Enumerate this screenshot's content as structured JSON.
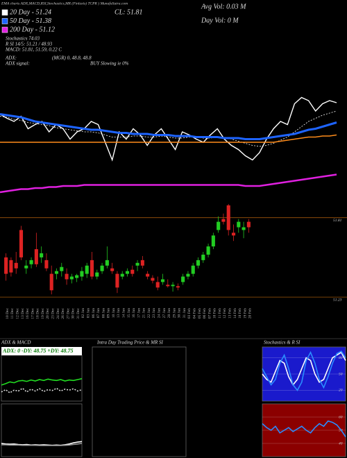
{
  "header": {
    "title": "EMA charts ADX,MACD,RSI,Stochastics,MR (Finlaxis) TCPR ) MunafaSutra.com",
    "cl": "CL: 51.81",
    "avg_vol": "Avg Vol: 0.03 M",
    "day_vol": "Day Vol: 0  M"
  },
  "indicators": {
    "stochastics": "Stochastics 74.03",
    "rsi": "R SI 14/5: 51.21 / 48.93",
    "macd": "MACD: 51.81, 51.59, 0.22 C",
    "adx_label": "ADX:",
    "adx_value": "(MGR) 0, 48.8, 48.8",
    "signal_label": "ADX  signal:",
    "signal_value": "BUY Slowing ie 0%"
  },
  "chart_data": [
    {
      "type": "line",
      "ylim": [
        0,
        100
      ],
      "series": [
        {
          "color": "#ffffff",
          "values": [
            77,
            73,
            70,
            75,
            63,
            67,
            70,
            60,
            67,
            63,
            53,
            60,
            63,
            70,
            67,
            50,
            33,
            60,
            53,
            63,
            57,
            47,
            57,
            63,
            53,
            43,
            60,
            57,
            53,
            50,
            57,
            63,
            53,
            47,
            43,
            37,
            33,
            40,
            53,
            63,
            70,
            67,
            87,
            93,
            90,
            80,
            87,
            90,
            88
          ]
        },
        {
          "name": "20 Day - 51.24",
          "color": "#ffffff",
          "dash": true,
          "values": [
            75,
            74,
            72,
            71,
            69,
            68,
            67,
            66,
            64,
            63,
            62,
            61,
            60,
            60,
            59,
            57,
            55,
            55,
            55,
            56,
            56,
            55,
            55,
            56,
            55,
            54,
            54,
            55,
            55,
            54,
            54,
            55,
            55,
            53,
            51,
            49,
            47,
            46,
            47,
            49,
            52,
            55,
            60,
            65,
            70,
            73,
            76,
            78,
            80
          ]
        },
        {
          "name": "50 Day - 51.38",
          "color": "#1e64ff",
          "values": [
            77,
            76,
            75,
            74,
            72,
            70,
            69,
            68,
            67,
            66,
            65,
            64,
            63,
            62,
            62,
            61,
            60,
            59,
            59,
            58,
            58,
            58,
            57,
            57,
            57,
            56,
            56,
            56,
            55,
            55,
            55,
            55,
            54,
            54,
            54,
            53,
            53,
            53,
            54,
            55,
            56,
            57,
            58,
            60,
            62,
            63,
            65,
            67,
            69
          ]
        },
        {
          "color": "#ff8c1a",
          "values": [
            50,
            50,
            50,
            50,
            50,
            50,
            50,
            50,
            50,
            50,
            50,
            50,
            50,
            50,
            50,
            50,
            50,
            50,
            50,
            50,
            50,
            50,
            50,
            50,
            50,
            50,
            50,
            50,
            50,
            50,
            50,
            50,
            50,
            50,
            50,
            50,
            50,
            50,
            50,
            50,
            51,
            52,
            53,
            54,
            55,
            55,
            56,
            56,
            57
          ]
        },
        {
          "name": "200 Day - 51.12",
          "color": "#e020e0",
          "values": [
            2,
            3,
            4,
            5,
            5,
            6,
            6,
            7,
            7,
            8,
            8,
            8,
            9,
            9,
            9,
            9,
            9,
            9,
            9,
            9,
            9,
            9,
            9,
            9,
            9,
            9,
            9,
            9,
            9,
            9,
            9,
            9,
            9,
            9,
            9,
            8,
            8,
            8,
            9,
            10,
            11,
            12,
            13,
            14,
            15,
            16,
            17,
            18,
            19
          ]
        }
      ]
    },
    {
      "type": "candlestick",
      "ylim": [
        51.17,
        51.93
      ],
      "yticks": [
        51.23,
        51.81
      ],
      "grid": true,
      "grid_color": "#a0560a",
      "up_color": "#22cc22",
      "down_color": "#dd2222",
      "categories": [
        "10 Dec",
        "11 Dec",
        "12 Dec",
        "13 Dec",
        "16 Dec",
        "17 Dec",
        "18 Dec",
        "19 Dec",
        "20 Dec",
        "23 Dec",
        "24 Dec",
        "26 Dec",
        "27 Dec",
        "30 Dec",
        "31 Dec",
        "02 Jan",
        "03 Jan",
        "06 Jan",
        "07 Jan",
        "08 Jan",
        "09 Jan",
        "10 Jan",
        "13 Jan",
        "14 Jan",
        "15 Jan",
        "16 Jan",
        "17 Jan",
        "21 Jan",
        "22 Jan",
        "23 Jan",
        "24 Jan",
        "27 Jan",
        "28 Jan",
        "29 Jan",
        "30 Jan",
        "31 Jan",
        "03 Feb",
        "04 Feb",
        "05 Feb",
        "06 Feb",
        "07 Feb",
        "10 Feb",
        "11 Feb",
        "12 Feb",
        "13 Feb",
        "14 Feb",
        "18 Feb",
        "19 Feb",
        "20 Feb"
      ],
      "open": [
        51.52,
        51.5,
        51.48,
        51.72,
        51.44,
        51.47,
        51.58,
        51.52,
        51.5,
        51.4,
        51.4,
        51.42,
        51.4,
        51.36,
        51.37,
        51.38,
        51.4,
        51.5,
        51.38,
        51.42,
        51.46,
        51.44,
        51.4,
        51.38,
        51.4,
        51.43,
        51.46,
        51.5,
        51.4,
        51.37,
        51.34,
        51.34,
        51.32,
        51.31,
        51.31,
        51.34,
        51.38,
        51.4,
        51.46,
        51.5,
        51.54,
        51.6,
        51.72,
        51.8,
        51.9,
        51.7,
        51.74,
        51.72,
        51.78
      ],
      "high": [
        51.55,
        51.52,
        51.56,
        51.75,
        51.5,
        51.52,
        51.7,
        51.6,
        51.55,
        51.46,
        51.44,
        51.48,
        51.44,
        51.4,
        51.4,
        51.45,
        51.48,
        51.56,
        51.43,
        51.48,
        51.6,
        51.48,
        51.42,
        51.42,
        51.44,
        51.46,
        51.5,
        51.53,
        51.42,
        51.39,
        51.38,
        51.4,
        51.36,
        51.34,
        51.33,
        51.4,
        51.42,
        51.48,
        51.52,
        51.56,
        51.62,
        51.7,
        51.82,
        51.84,
        51.91,
        51.76,
        51.8,
        51.78,
        51.8
      ],
      "low": [
        51.35,
        51.38,
        51.4,
        51.5,
        51.4,
        51.44,
        51.45,
        51.48,
        51.42,
        51.25,
        51.36,
        51.38,
        51.32,
        51.33,
        51.34,
        51.35,
        51.37,
        51.36,
        51.36,
        51.4,
        51.44,
        51.4,
        51.26,
        51.36,
        51.38,
        51.38,
        51.42,
        51.44,
        51.36,
        51.33,
        51.28,
        51.32,
        51.3,
        51.27,
        51.28,
        51.32,
        51.36,
        51.38,
        51.44,
        51.48,
        51.52,
        51.58,
        51.7,
        51.76,
        51.68,
        51.64,
        51.7,
        51.66,
        51.7
      ],
      "close": [
        51.4,
        51.41,
        51.44,
        51.52,
        51.46,
        51.5,
        51.47,
        51.55,
        51.44,
        51.28,
        51.42,
        51.45,
        51.36,
        51.38,
        51.39,
        51.42,
        51.46,
        51.38,
        51.41,
        51.46,
        51.5,
        51.42,
        51.3,
        51.4,
        51.42,
        51.4,
        51.48,
        51.46,
        51.38,
        51.35,
        51.3,
        51.36,
        51.31,
        51.32,
        51.3,
        51.38,
        51.4,
        51.46,
        51.5,
        51.54,
        51.6,
        51.68,
        51.78,
        51.78,
        51.72,
        51.68,
        51.78,
        51.74,
        51.74
      ]
    },
    {
      "type": "line",
      "title": "ADX  & MACD",
      "subtitle": "ADX: 0  -DY: 48.75 +DY: 48.75",
      "ylim": [
        0,
        100
      ],
      "series": [
        {
          "color": "#22dd22",
          "values": [
            35,
            38,
            42,
            40,
            44,
            45,
            43,
            46,
            44,
            47,
            45,
            48,
            46,
            45,
            47,
            44,
            46,
            45,
            47,
            49
          ]
        },
        {
          "color": "#dddddd",
          "dash": true,
          "values": [
            20,
            25,
            18,
            24,
            22,
            28,
            20,
            26,
            22,
            27,
            21,
            25,
            23,
            28,
            22,
            26,
            24,
            27,
            22,
            25
          ]
        }
      ]
    },
    {
      "type": "line",
      "ylim": [
        -1,
        1
      ],
      "series": [
        {
          "color": "#ffffff",
          "values": [
            -0.5,
            -0.52,
            -0.53,
            -0.52,
            -0.54,
            -0.55,
            -0.54,
            -0.56,
            -0.55,
            -0.56,
            -0.55,
            -0.56,
            -0.57,
            -0.56,
            -0.57,
            -0.55,
            -0.52,
            -0.48,
            -0.45,
            -0.43
          ]
        },
        {
          "color": "#999999",
          "values": [
            -0.55,
            -0.55,
            -0.56,
            -0.56,
            -0.56,
            -0.57,
            -0.57,
            -0.57,
            -0.57,
            -0.58,
            -0.58,
            -0.58,
            -0.58,
            -0.58,
            -0.58,
            -0.57,
            -0.56,
            -0.54,
            -0.52,
            -0.5
          ]
        }
      ]
    },
    {
      "type": "blank",
      "title": "Intra Day Trading Price  & MR          SI"
    },
    {
      "type": "line",
      "title": "Stochastics & R           SI",
      "ylim": [
        0,
        100
      ],
      "yticks": [
        20,
        50,
        80
      ],
      "background": "#1a1acc",
      "series": [
        {
          "color": "#ffffff",
          "values": [
            50,
            40,
            35,
            55,
            75,
            70,
            45,
            30,
            40,
            60,
            80,
            75,
            50,
            35,
            40,
            60,
            80,
            85,
            90,
            75
          ]
        },
        {
          "color": "#2a8cff",
          "values": [
            60,
            45,
            30,
            40,
            70,
            85,
            60,
            30,
            20,
            35,
            75,
            90,
            70,
            40,
            25,
            45,
            70,
            88,
            92,
            80
          ]
        }
      ]
    },
    {
      "type": "line",
      "ylim": [
        30,
        70
      ],
      "yticks": [
        40,
        50,
        60
      ],
      "background": "#8b0000",
      "series": [
        {
          "color": "#2a8cff",
          "values": [
            55,
            52,
            50,
            53,
            48,
            50,
            52,
            49,
            51,
            53,
            50,
            48,
            52,
            55,
            53,
            57,
            56,
            54,
            50,
            45
          ]
        }
      ]
    }
  ]
}
